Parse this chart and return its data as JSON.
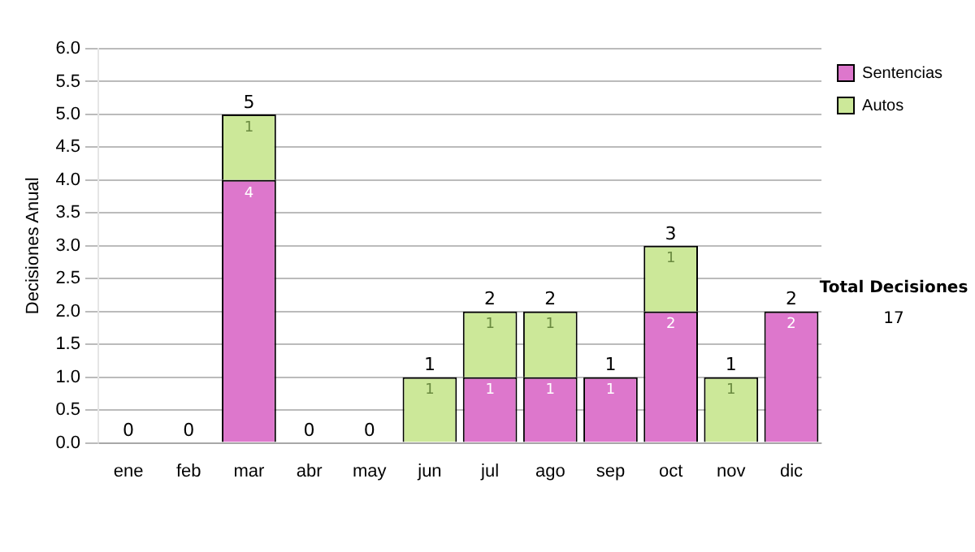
{
  "chart_data": {
    "type": "bar",
    "stacked": true,
    "ylabel": "Decisiones Anual",
    "categories": [
      "ene",
      "feb",
      "mar",
      "abr",
      "may",
      "jun",
      "jul",
      "ago",
      "sep",
      "oct",
      "nov",
      "dic"
    ],
    "series": [
      {
        "name": "Sentencias",
        "color": "#dd77cc",
        "values": [
          0,
          0,
          4,
          0,
          0,
          0,
          1,
          1,
          1,
          2,
          0,
          2
        ],
        "value_labels": [
          null,
          null,
          "4",
          null,
          null,
          null,
          "1",
          "1",
          "1",
          "2",
          null,
          "2"
        ]
      },
      {
        "name": "Autos",
        "color": "#cce899",
        "values": [
          0,
          0,
          1,
          0,
          0,
          1,
          1,
          1,
          0,
          1,
          1,
          0
        ],
        "value_labels": [
          null,
          null,
          "1",
          null,
          null,
          "1",
          "1",
          "1",
          null,
          "1",
          "1",
          null
        ]
      }
    ],
    "ylim": [
      0,
      6
    ],
    "yticks": [
      {
        "value": 0,
        "label": "0.0"
      },
      {
        "value": 0.5,
        "label": "0.5"
      },
      {
        "value": 1,
        "label": "1.0"
      },
      {
        "value": 1.5,
        "label": "1.5"
      },
      {
        "value": 2,
        "label": "2.0"
      },
      {
        "value": 2.5,
        "label": "2.5"
      },
      {
        "value": 3,
        "label": "3.0"
      },
      {
        "value": 3.5,
        "label": "3.5"
      },
      {
        "value": 4,
        "label": "4.0"
      },
      {
        "value": 4.5,
        "label": "4.5"
      },
      {
        "value": 5,
        "label": "5.0"
      },
      {
        "value": 5.5,
        "label": "5.5"
      },
      {
        "value": 6,
        "label": "6.0"
      }
    ],
    "grid": "y",
    "legend": "right",
    "totals": [
      "0",
      "0",
      "5",
      "0",
      "0",
      "1",
      "2",
      "2",
      "1",
      "3",
      "1",
      "2"
    ],
    "annotations": [
      "Total Decisiones",
      "17"
    ]
  }
}
